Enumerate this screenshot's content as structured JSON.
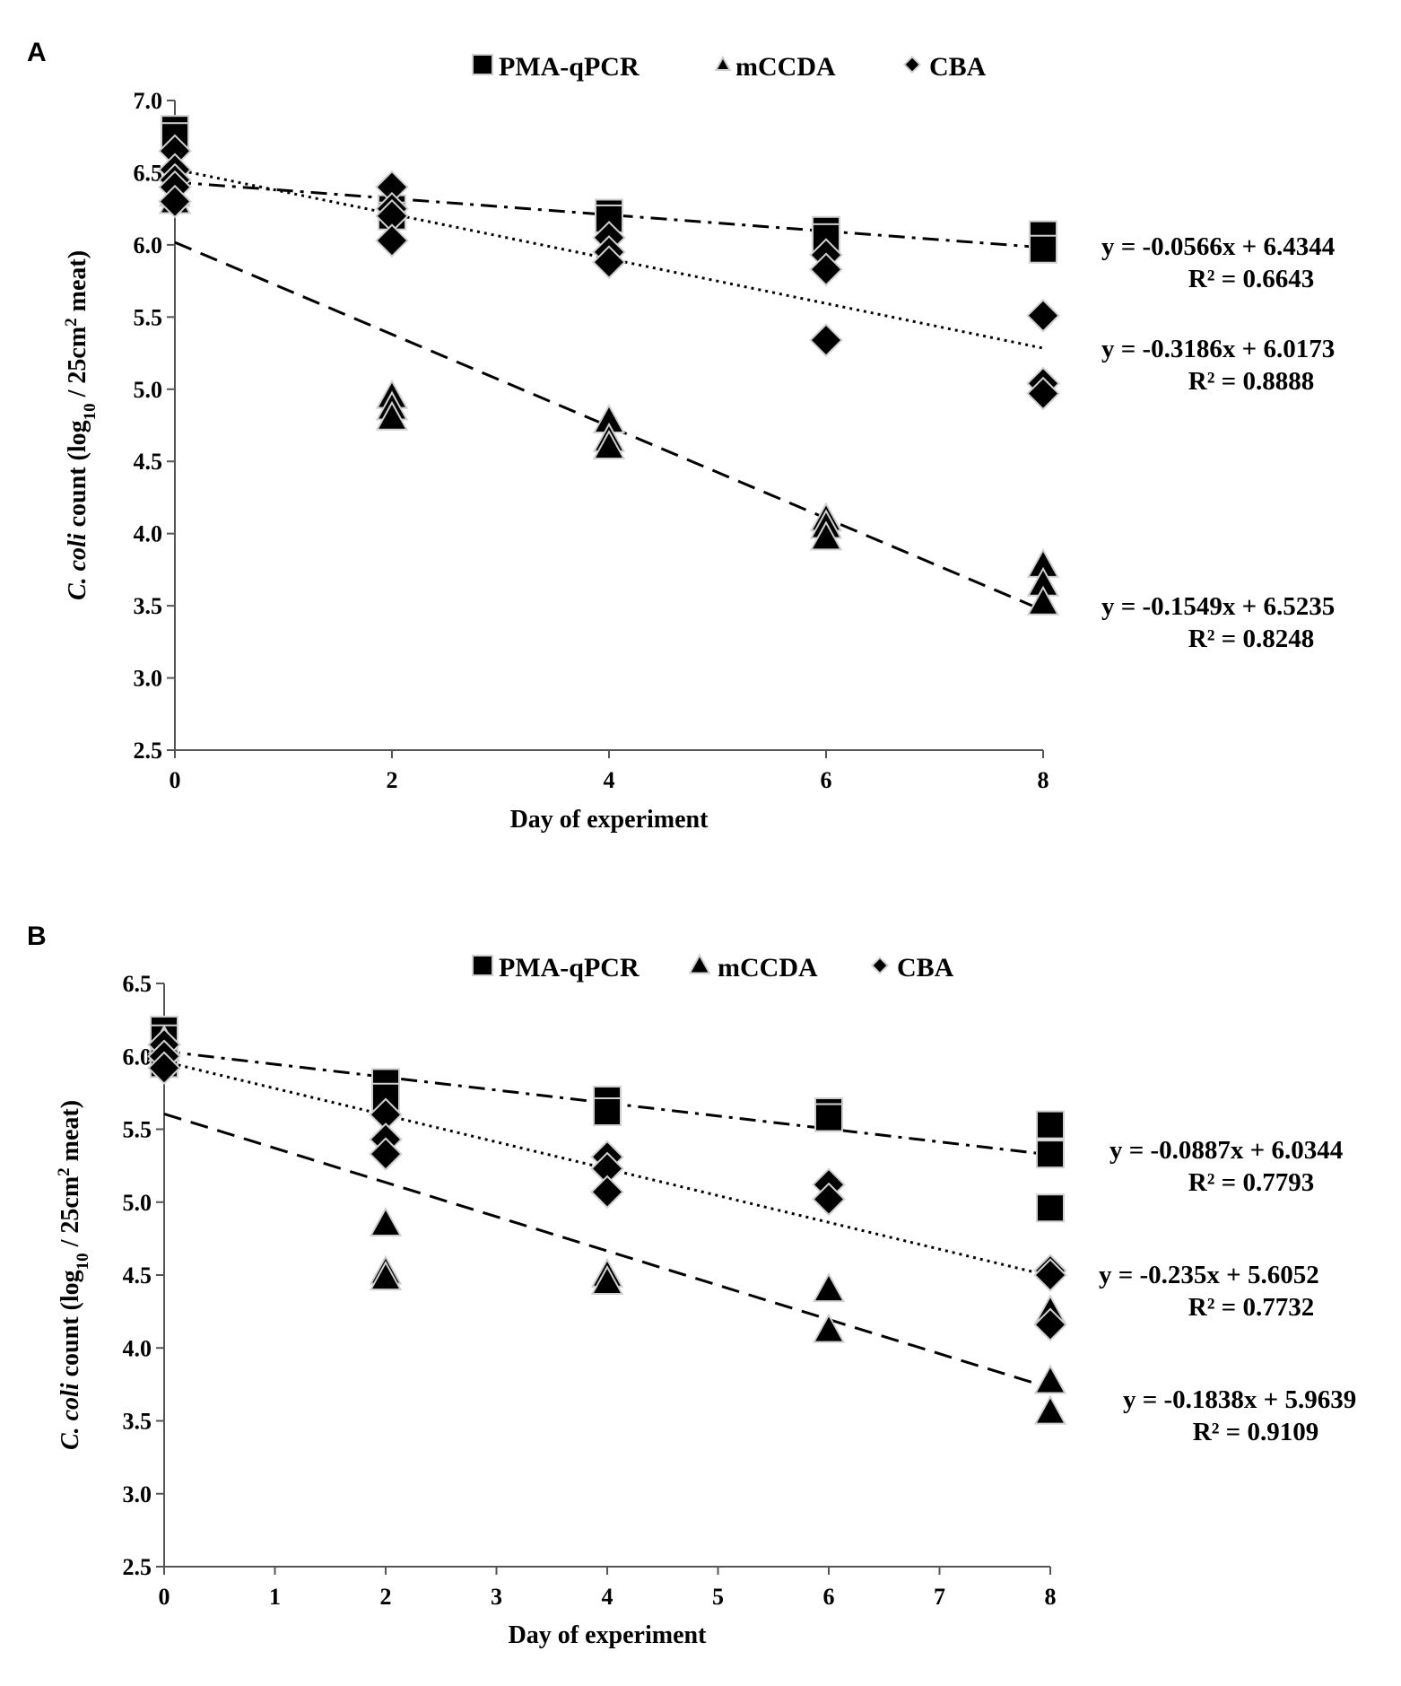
{
  "chart_data": [
    {
      "type": "scatter",
      "panel": "A",
      "title": "",
      "xlabel": "Day of experiment",
      "ylabel_parts": [
        "C. coli",
        " count (log",
        "10",
        " / 25cm",
        "2",
        " meat)"
      ],
      "xlim": [
        0,
        8
      ],
      "ylim": [
        2.5,
        7.0
      ],
      "x_ticks": [
        "0",
        "2",
        "4",
        "6",
        "8"
      ],
      "y_ticks": [
        "2.5",
        "3.0",
        "3.5",
        "4.0",
        "4.5",
        "5.0",
        "5.5",
        "6.0",
        "6.5",
        "7.0"
      ],
      "legend": [
        "PMA-qPCR",
        "mCCDA",
        "CBA"
      ],
      "legend_position": "top",
      "grid": false,
      "series": [
        {
          "name": "PMA-qPCR",
          "marker": "square",
          "line": "dash-dot",
          "points": [
            [
              0,
              6.8
            ],
            [
              0,
              6.75
            ],
            [
              2,
              6.25
            ],
            [
              2,
              6.2
            ],
            [
              4,
              6.22
            ],
            [
              4,
              6.18
            ],
            [
              6,
              6.1
            ],
            [
              6,
              6.05
            ],
            [
              8,
              6.07
            ],
            [
              8,
              5.97
            ]
          ],
          "trendline": {
            "slope": -0.0566,
            "intercept": 6.4344,
            "equation": "y = -0.0566x + 6.4344",
            "r2": "R² = 0.6643"
          }
        },
        {
          "name": "mCCDA",
          "marker": "triangle",
          "line": "dashed",
          "points": [
            [
              0,
              6.35
            ],
            [
              0,
              6.3
            ],
            [
              2,
              4.95
            ],
            [
              2,
              4.87
            ],
            [
              2,
              4.8
            ],
            [
              4,
              4.78
            ],
            [
              4,
              4.65
            ],
            [
              4,
              4.6
            ],
            [
              6,
              4.1
            ],
            [
              6,
              4.05
            ],
            [
              6,
              3.97
            ],
            [
              8,
              3.78
            ],
            [
              8,
              3.65
            ],
            [
              8,
              3.52
            ]
          ],
          "trendline": {
            "slope": -0.3186,
            "intercept": 6.0173,
            "equation": "y = -0.3186x + 6.0173",
            "r2": "R² = 0.8888"
          }
        },
        {
          "name": "CBA",
          "marker": "diamond",
          "line": "dotted",
          "points": [
            [
              0,
              6.65
            ],
            [
              0,
              6.52
            ],
            [
              0,
              6.45
            ],
            [
              0,
              6.4
            ],
            [
              0,
              6.3
            ],
            [
              2,
              6.4
            ],
            [
              2,
              6.25
            ],
            [
              2,
              6.2
            ],
            [
              2,
              6.03
            ],
            [
              4,
              6.05
            ],
            [
              4,
              5.95
            ],
            [
              4,
              5.88
            ],
            [
              6,
              5.93
            ],
            [
              6,
              5.83
            ],
            [
              6,
              5.34
            ],
            [
              8,
              5.51
            ],
            [
              8,
              5.04
            ],
            [
              8,
              4.97
            ]
          ],
          "trendline": {
            "slope": -0.1549,
            "intercept": 6.5235,
            "equation": "y = -0.1549x + 6.5235",
            "r2": "R² = 0.8248"
          }
        }
      ]
    },
    {
      "type": "scatter",
      "panel": "B",
      "title": "",
      "xlabel": "Day of experiment",
      "ylabel_parts": [
        "C. coli",
        " count (log",
        "10",
        " / 25cm",
        "2",
        " meat)"
      ],
      "xlim": [
        0,
        8
      ],
      "ylim": [
        2.5,
        6.5
      ],
      "x_ticks": [
        "0",
        "1",
        "2",
        "3",
        "4",
        "5",
        "6",
        "7",
        "8"
      ],
      "y_ticks": [
        "2.5",
        "3.0",
        "3.5",
        "4.0",
        "4.5",
        "5.0",
        "5.5",
        "6.0",
        "6.5"
      ],
      "legend": [
        "PMA-qPCR",
        "mCCDA",
        "CBA"
      ],
      "legend_position": "top",
      "grid": false,
      "series": [
        {
          "name": "PMA-qPCR",
          "marker": "square",
          "line": "dash-dot",
          "points": [
            [
              0,
              6.18
            ],
            [
              0,
              6.12
            ],
            [
              0,
              5.95
            ],
            [
              2,
              5.82
            ],
            [
              2,
              5.72
            ],
            [
              4,
              5.7
            ],
            [
              4,
              5.62
            ],
            [
              6,
              5.62
            ],
            [
              6,
              5.58
            ],
            [
              8,
              5.53
            ],
            [
              8,
              5.33
            ],
            [
              8,
              4.96
            ]
          ],
          "trendline": {
            "slope": -0.0887,
            "intercept": 6.0344,
            "equation": "y = -0.0887x + 6.0344",
            "r2": "R² = 0.7793"
          }
        },
        {
          "name": "mCCDA",
          "marker": "triangle",
          "line": "dashed",
          "points": [
            [
              0,
              6.1
            ],
            [
              0,
              6.05
            ],
            [
              2,
              4.85
            ],
            [
              2,
              4.52
            ],
            [
              2,
              4.48
            ],
            [
              4,
              4.5
            ],
            [
              4,
              4.45
            ],
            [
              6,
              4.4
            ],
            [
              6,
              4.12
            ],
            [
              8,
              4.25
            ],
            [
              8,
              3.77
            ],
            [
              8,
              3.56
            ]
          ],
          "trendline": {
            "slope": -0.235,
            "intercept": 5.6052,
            "equation": "y = -0.235x + 5.6052",
            "r2": "R² = 0.7732"
          }
        },
        {
          "name": "CBA",
          "marker": "diamond",
          "line": "dotted",
          "points": [
            [
              0,
              6.08
            ],
            [
              0,
              6.0
            ],
            [
              0,
              5.92
            ],
            [
              2,
              5.6
            ],
            [
              2,
              5.43
            ],
            [
              2,
              5.33
            ],
            [
              4,
              5.31
            ],
            [
              4,
              5.23
            ],
            [
              4,
              5.07
            ],
            [
              6,
              5.12
            ],
            [
              6,
              5.02
            ],
            [
              8,
              4.53
            ],
            [
              8,
              4.5
            ],
            [
              8,
              4.16
            ]
          ],
          "trendline": {
            "slope": -0.1838,
            "intercept": 5.9639,
            "equation": "y = -0.1838x + 5.9639",
            "r2": "R² = 0.9109"
          }
        }
      ]
    }
  ]
}
